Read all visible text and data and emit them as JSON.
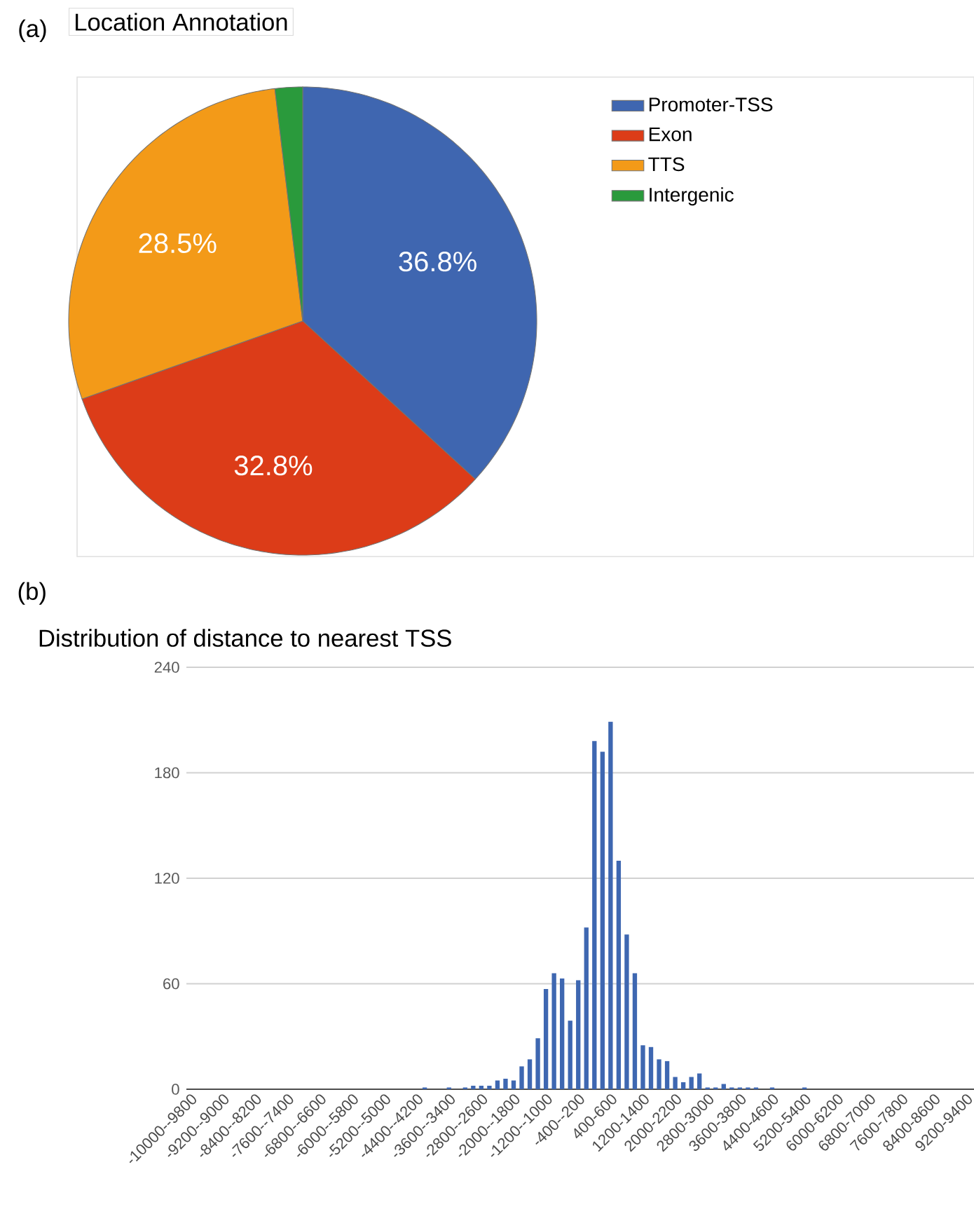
{
  "chart_data": [
    {
      "type": "pie",
      "title": "Location Annotation",
      "annotations": [
        "(a)"
      ],
      "categories": [
        "Promoter-TSS",
        "Exon",
        "TTS",
        "Intergenic"
      ],
      "values": [
        36.8,
        32.8,
        28.5,
        1.9
      ],
      "value_labels": [
        "36.8%",
        "32.8%",
        "28.5%",
        null
      ],
      "colors": [
        "#3f66b0",
        "#dc3c18",
        "#f39a18",
        "#2a9a3c"
      ],
      "legend": "right"
    },
    {
      "type": "bar",
      "title": "Distribution of distance to nearest TSS",
      "annotations": [
        "(b)"
      ],
      "color": "#3e67b1",
      "grid": "y",
      "ylim": [
        0,
        240
      ],
      "yticks": [
        0,
        60,
        120,
        180,
        240
      ],
      "categories": [
        "-10000--9800",
        null,
        null,
        null,
        "-9200--9000",
        null,
        null,
        null,
        "-8400--8200",
        null,
        null,
        null,
        "-7600--7400",
        null,
        null,
        null,
        "-6800--6600",
        null,
        null,
        null,
        "-6000--5800",
        null,
        null,
        null,
        "-5200--5000",
        null,
        null,
        null,
        "-4400--4200",
        null,
        null,
        null,
        "-3600--3400",
        null,
        null,
        null,
        "-2800--2600",
        null,
        null,
        null,
        "-2000--1800",
        null,
        null,
        null,
        "-1200--1000",
        null,
        null,
        null,
        "-400--200",
        null,
        null,
        null,
        "400-600",
        null,
        null,
        null,
        "1200-1400",
        null,
        null,
        null,
        "2000-2200",
        null,
        null,
        null,
        "2800-3000",
        null,
        null,
        null,
        "3600-3800",
        null,
        null,
        null,
        "4400-4600",
        null,
        null,
        null,
        "5200-5400",
        null,
        null,
        null,
        "6000-6200",
        null,
        null,
        null,
        "6800-7000",
        null,
        null,
        null,
        "7600-7800",
        null,
        null,
        null,
        "8400-8600",
        null,
        null,
        null,
        "9200-9400",
        null
      ],
      "values": [
        0,
        0,
        0,
        0,
        0,
        0,
        0,
        0,
        0,
        0,
        0,
        0,
        0,
        0,
        0,
        0,
        0,
        0,
        0,
        0,
        0,
        0,
        0,
        0,
        0,
        0,
        0,
        0,
        0,
        1,
        0,
        0,
        1,
        0,
        1,
        2,
        2,
        2,
        5,
        6,
        5,
        13,
        17,
        29,
        57,
        66,
        63,
        39,
        62,
        92,
        198,
        192,
        209,
        130,
        88,
        66,
        25,
        24,
        17,
        16,
        7,
        4,
        7,
        9,
        1,
        1,
        3,
        1,
        1,
        1,
        1,
        0,
        1,
        0,
        0,
        0,
        1,
        0,
        0,
        0,
        0,
        0,
        0,
        0,
        0,
        0,
        0,
        0,
        0,
        0,
        0,
        0,
        0,
        0,
        0,
        0,
        0,
        0
      ]
    }
  ]
}
